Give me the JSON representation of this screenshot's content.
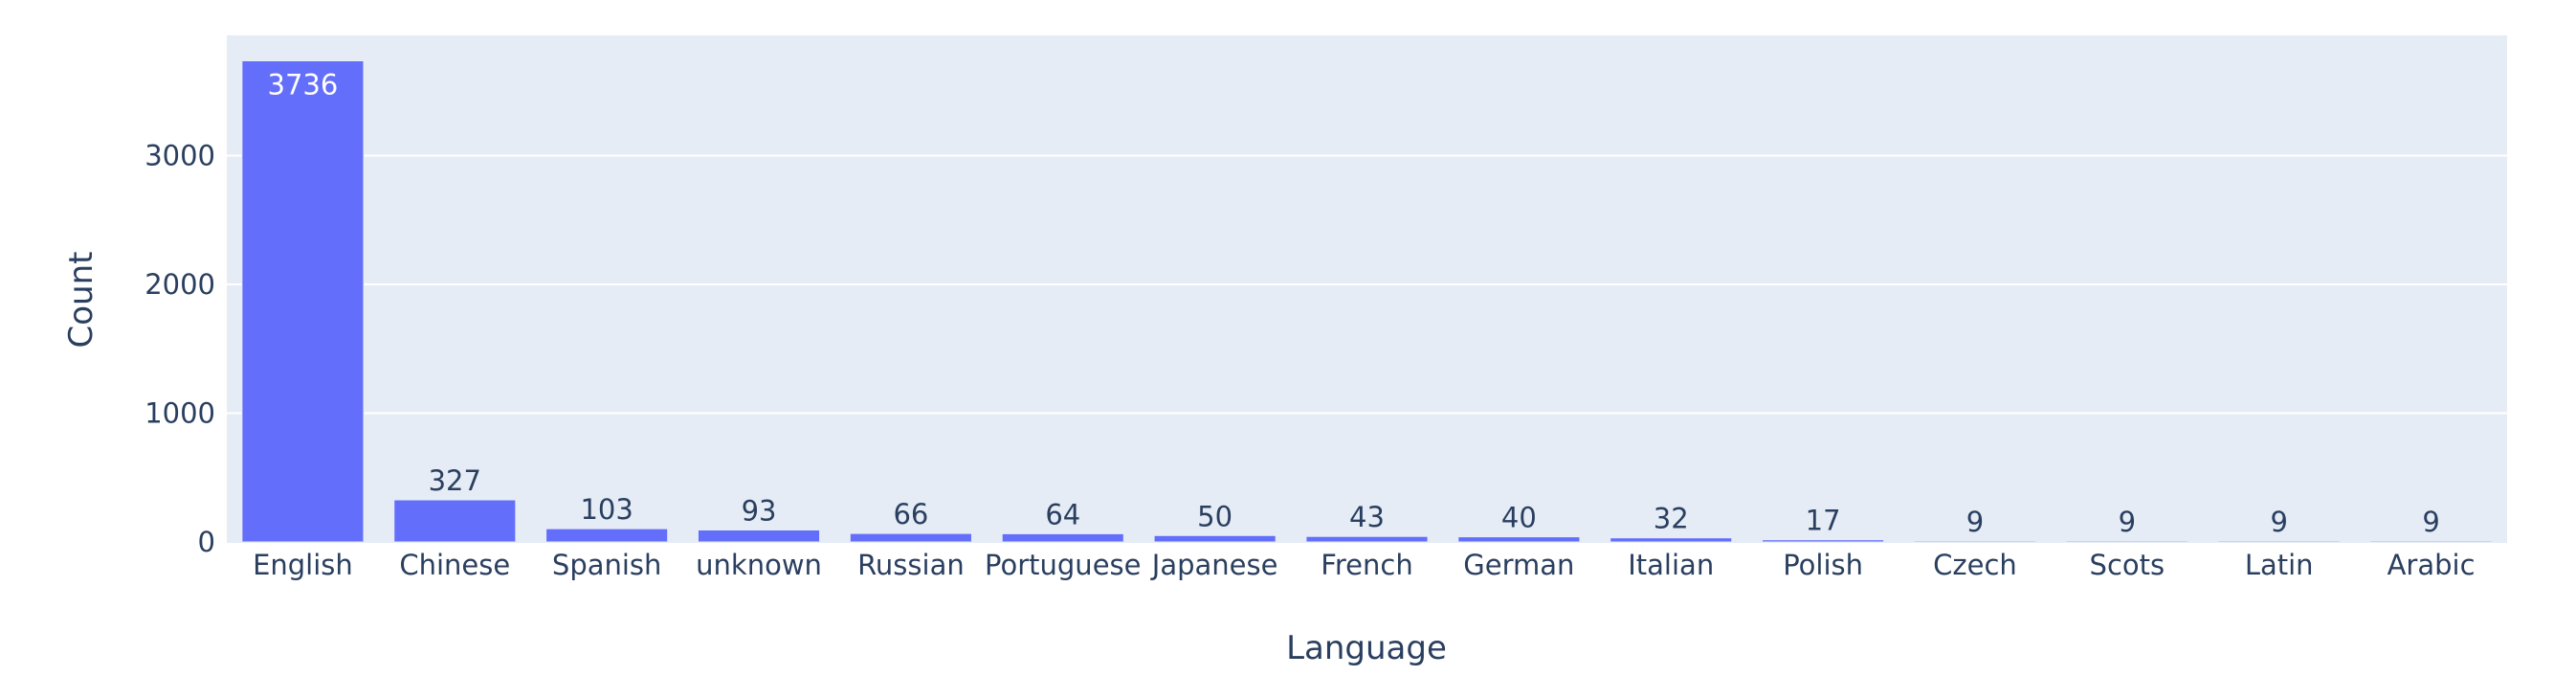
{
  "chart_data": {
    "type": "bar",
    "title": "",
    "xlabel": "Language",
    "ylabel": "Count",
    "categories": [
      "English",
      "Chinese",
      "Spanish",
      "unknown",
      "Russian",
      "Portuguese",
      "Japanese",
      "French",
      "German",
      "Italian",
      "Polish",
      "Czech",
      "Scots",
      "Latin",
      "Arabic"
    ],
    "values": [
      3736,
      327,
      103,
      93,
      66,
      64,
      50,
      43,
      40,
      32,
      17,
      9,
      9,
      9,
      9
    ],
    "ylim": [
      0,
      3933
    ],
    "yticks": [
      0,
      1000,
      2000,
      3000
    ],
    "grid": true,
    "data_labels": true,
    "colors": {
      "bar": "#636efa",
      "plot_bg": "#e5ecf6",
      "text": "#2a3f5f",
      "grid": "#ffffff"
    }
  }
}
